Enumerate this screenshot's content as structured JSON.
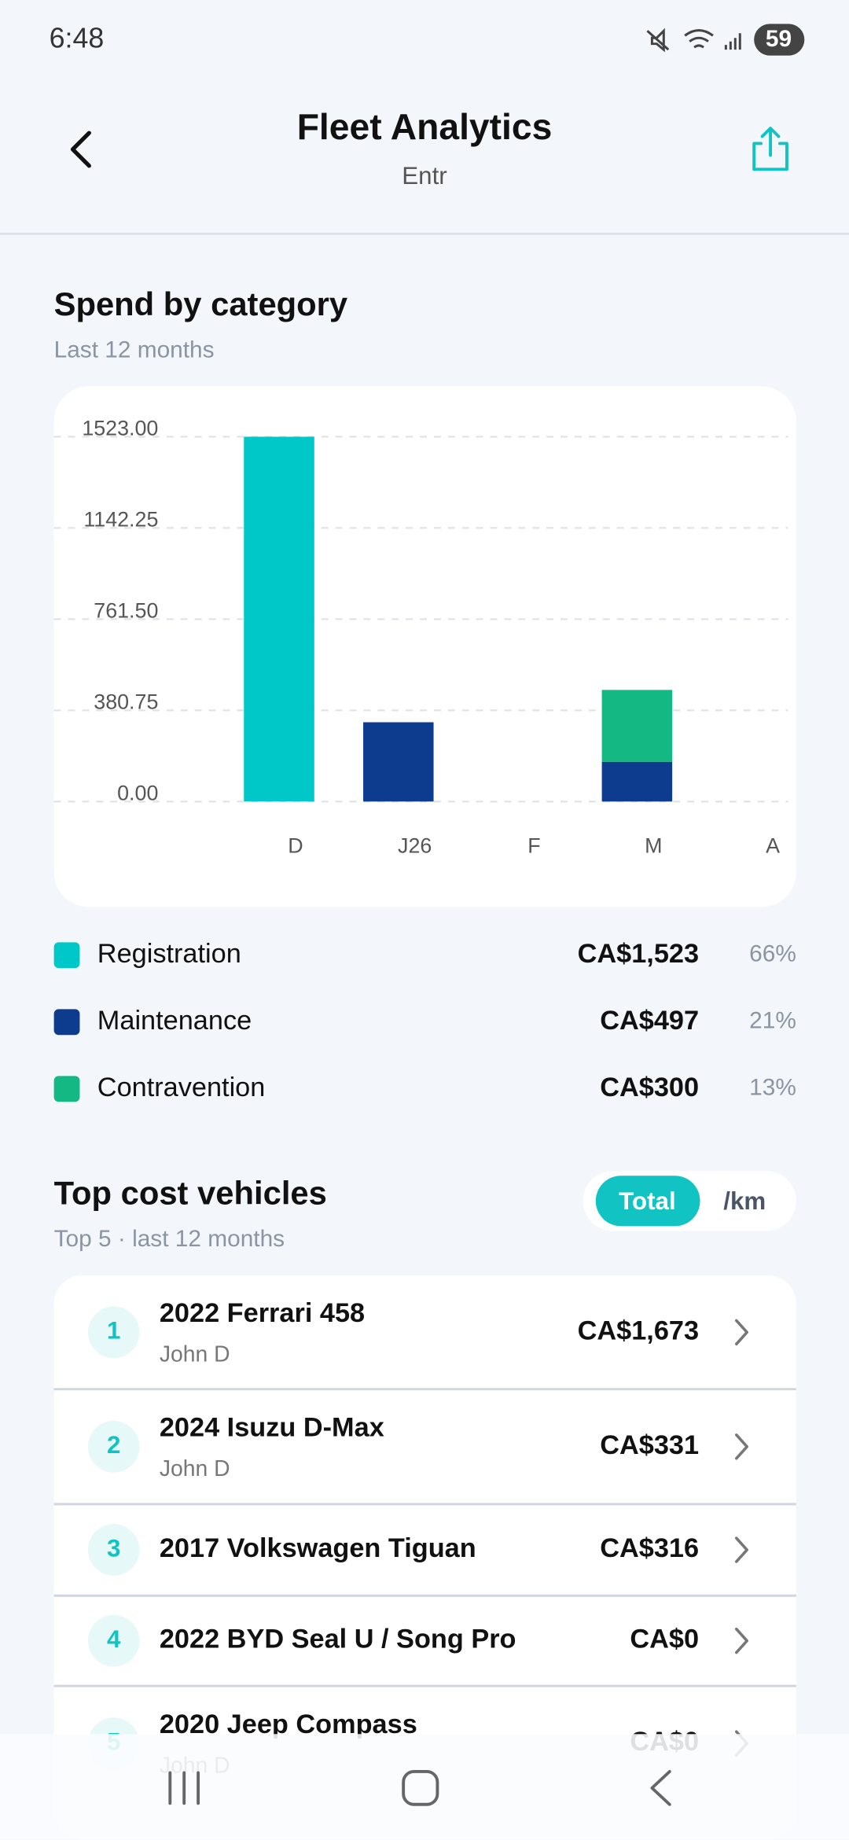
{
  "status_bar": {
    "time": "6:48",
    "battery": "59"
  },
  "header": {
    "title": "Fleet Analytics",
    "subtitle": "Entr"
  },
  "spend_section": {
    "title": "Spend by category",
    "subtitle": "Last 12 months"
  },
  "chart_data": {
    "type": "stacked_bar",
    "categories": [
      "D",
      "J26",
      "F",
      "M",
      "A"
    ],
    "series": [
      {
        "name": "Registration",
        "color": "#00c8c8",
        "values": [
          1523,
          0,
          0,
          0,
          0
        ]
      },
      {
        "name": "Maintenance",
        "color": "#0d3b8e",
        "values": [
          0,
          331,
          0,
          166,
          0
        ]
      },
      {
        "name": "Contravention",
        "color": "#13b883",
        "values": [
          0,
          0,
          0,
          300,
          0
        ]
      }
    ],
    "ylim": [
      0,
      1523
    ],
    "yticks": [
      {
        "value": 0,
        "label": "0.00"
      },
      {
        "value": 380.75,
        "label": "380.75"
      },
      {
        "value": 761.5,
        "label": "761.50"
      },
      {
        "value": 1142.25,
        "label": "1142.25"
      },
      {
        "value": 1523,
        "label": "1523.00"
      }
    ],
    "grid": true
  },
  "legend_totals": [
    {
      "amount": "CA$1,523",
      "share": "66%"
    },
    {
      "amount": "CA$497",
      "share": "21%"
    },
    {
      "amount": "CA$300",
      "share": "13%"
    }
  ],
  "vehicles": {
    "title": "Top cost vehicles",
    "subtitle": "Top 5 · last 12 months",
    "toggle": [
      "Total",
      "/km"
    ],
    "rows": [
      {
        "rank": "1",
        "name": "2022 Ferrari 458",
        "driver": "John D",
        "cost": "CA$1,673"
      },
      {
        "rank": "2",
        "name": "2024 Isuzu D-Max",
        "driver": "John D",
        "cost": "CA$331"
      },
      {
        "rank": "3",
        "name": "2017 Volkswagen Tiguan",
        "cost": "CA$316"
      },
      {
        "rank": "4",
        "name": "2022 BYD Seal U / Song Pro",
        "cost": "CA$0"
      },
      {
        "rank": "5",
        "name": "2020 Jeep Compass",
        "driver": "John D",
        "cost": "CA$0"
      }
    ]
  }
}
